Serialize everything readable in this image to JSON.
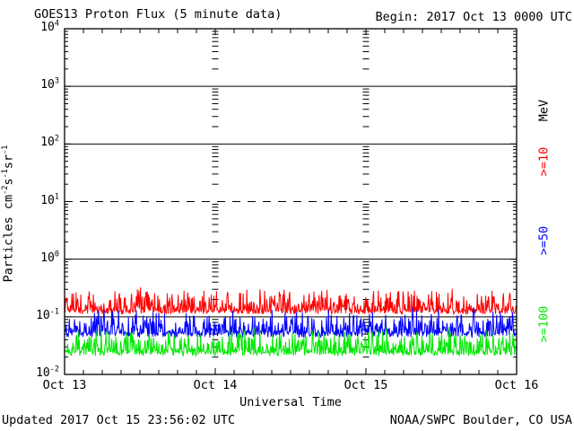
{
  "header": {
    "begin_label": "Begin: 2017 Oct 13 0000 UTC"
  },
  "footer": {
    "updated": "Updated 2017 Oct 15 23:56:02 UTC",
    "source": "NOAA/SWPC Boulder, CO USA"
  },
  "chart_data": {
    "type": "line",
    "title": "GOES13 Proton Flux (5 minute data)",
    "xlabel": "Universal Time",
    "ylabel": "Particles cm-2 s-1 sr-1",
    "ylabel_segments": [
      {
        "text": "Particles cm",
        "sup": false
      },
      {
        "text": "-2",
        "sup": true
      },
      {
        "text": "s",
        "sup": false
      },
      {
        "text": "-1",
        "sup": true
      },
      {
        "text": "sr",
        "sup": false
      },
      {
        "text": "-1",
        "sup": true
      }
    ],
    "x_tick_labels": [
      "Oct 13",
      "Oct 14",
      "Oct 15",
      "Oct 16"
    ],
    "x_minor_ticks_per_day": 8,
    "days": 3,
    "points_per_day": 288,
    "y_scale": "log",
    "ylim": [
      0.01,
      10000
    ],
    "y_tick_exponents": [
      4,
      3,
      2,
      1,
      0,
      -1,
      -2
    ],
    "grid": {
      "solid_hlines": [
        1000,
        100,
        1,
        0.1
      ],
      "dashed_hlines": [
        10
      ],
      "day_boundary_minor_columns": true
    },
    "right_axis_header": {
      "text": "MeV",
      "color": "#000000"
    },
    "legend_position": "right",
    "series": [
      {
        "label": ">=10",
        "color": "#ff0000",
        "approx_baseline": 0.13,
        "approx_min": 0.11,
        "approx_max": 0.46,
        "synth": {
          "seed": 42,
          "up_decades": 0.38,
          "down_decades": 0.07,
          "spike_prob": 0.05,
          "spike_extra_decades": 0.17
        }
      },
      {
        "label": ">=50",
        "color": "#0000ff",
        "approx_baseline": 0.055,
        "approx_min": 0.044,
        "approx_max": 0.15,
        "synth": {
          "seed": 7,
          "up_decades": 0.4,
          "down_decades": 0.1,
          "spike_prob": 0.05,
          "spike_extra_decades": 0.12
        }
      },
      {
        "label": ">=100",
        "color": "#00e800",
        "approx_baseline": 0.025,
        "approx_min": 0.021,
        "approx_max": 0.07,
        "synth": {
          "seed": 13,
          "up_decades": 0.4,
          "down_decades": 0.08,
          "spike_prob": 0.05,
          "spike_extra_decades": 0.12
        }
      }
    ]
  }
}
